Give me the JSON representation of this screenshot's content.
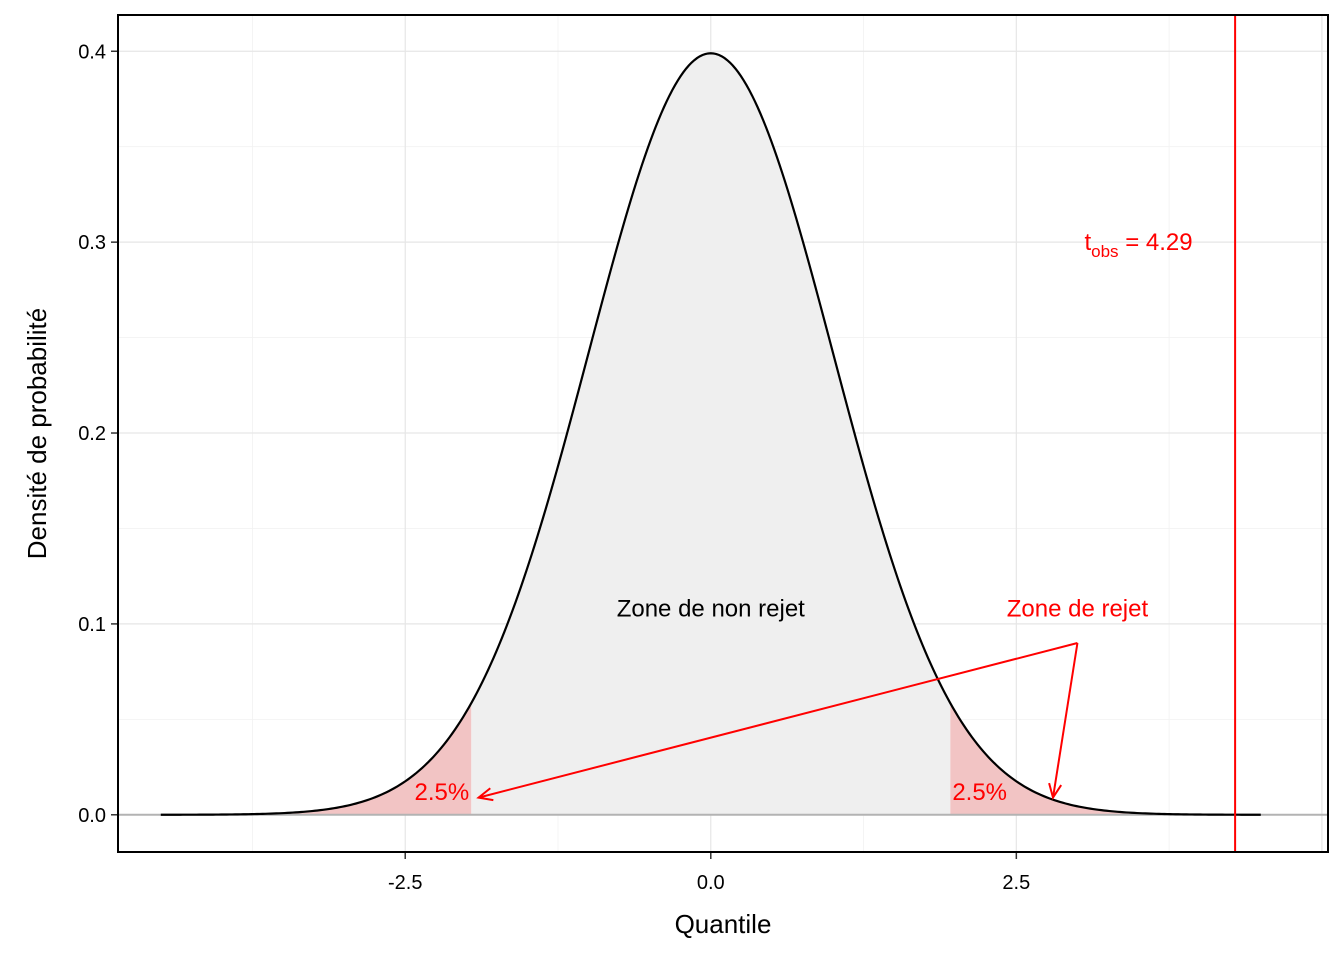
{
  "chart_data": {
    "type": "area",
    "distribution": "standard normal density",
    "xlabel": "Quantile",
    "ylabel": "Densité de probabilité",
    "xlim": [
      -4.85,
      5.05
    ],
    "ylim": [
      -0.0195,
      0.419
    ],
    "x_ticks": [
      -2.5,
      0.0,
      2.5
    ],
    "x_tick_labels": [
      "-2.5",
      "0.0",
      "2.5"
    ],
    "y_ticks": [
      0.0,
      0.1,
      0.2,
      0.3,
      0.4
    ],
    "y_tick_labels": [
      "0.0",
      "0.1",
      "0.2",
      "0.3",
      "0.4"
    ],
    "curve": {
      "x": [
        -4.5,
        -4.0,
        -3.5,
        -3.0,
        -2.5,
        -2.0,
        -1.5,
        -1.0,
        -0.5,
        0.0,
        0.5,
        1.0,
        1.5,
        2.0,
        2.5,
        3.0,
        3.5,
        4.0,
        4.5
      ],
      "y": [
        2e-05,
        0.00013,
        0.00087,
        0.00443,
        0.01753,
        0.05399,
        0.12952,
        0.24197,
        0.35207,
        0.39894,
        0.35207,
        0.24197,
        0.12952,
        0.05399,
        0.01753,
        0.00443,
        0.00087,
        0.00013,
        2e-05
      ],
      "range": [
        -4.5,
        4.5
      ]
    },
    "critical_values": [
      -1.96,
      1.96
    ],
    "acceptance_region": {
      "label": "Zone de non rejet",
      "from": -1.96,
      "to": 1.96,
      "fill": "#efefef"
    },
    "rejection_regions": [
      {
        "from": -4.5,
        "to": -1.96,
        "percent_label": "2.5%",
        "fill": "#f2c4c4"
      },
      {
        "from": 1.96,
        "to": 4.5,
        "percent_label": "2.5%",
        "fill": "#f2c4c4"
      }
    ],
    "rejection_label": {
      "text": "Zone de rejet",
      "x": 3.0,
      "y": 0.108
    },
    "arrows": [
      {
        "from": [
          3.0,
          0.09
        ],
        "to": [
          -1.9,
          0.009
        ]
      },
      {
        "from": [
          3.0,
          0.09
        ],
        "to": [
          2.8,
          0.009
        ]
      }
    ],
    "observed": {
      "value": 4.29,
      "label_symbol": "t",
      "label_subscript": "obs",
      "label_rest": " = 4.29",
      "label_x": 3.5,
      "label_y": 0.3
    },
    "colors": {
      "accent": "#ff0000",
      "curve": "#000000",
      "baseline": "#b3b3b3"
    },
    "grid": true,
    "legend": "none"
  }
}
